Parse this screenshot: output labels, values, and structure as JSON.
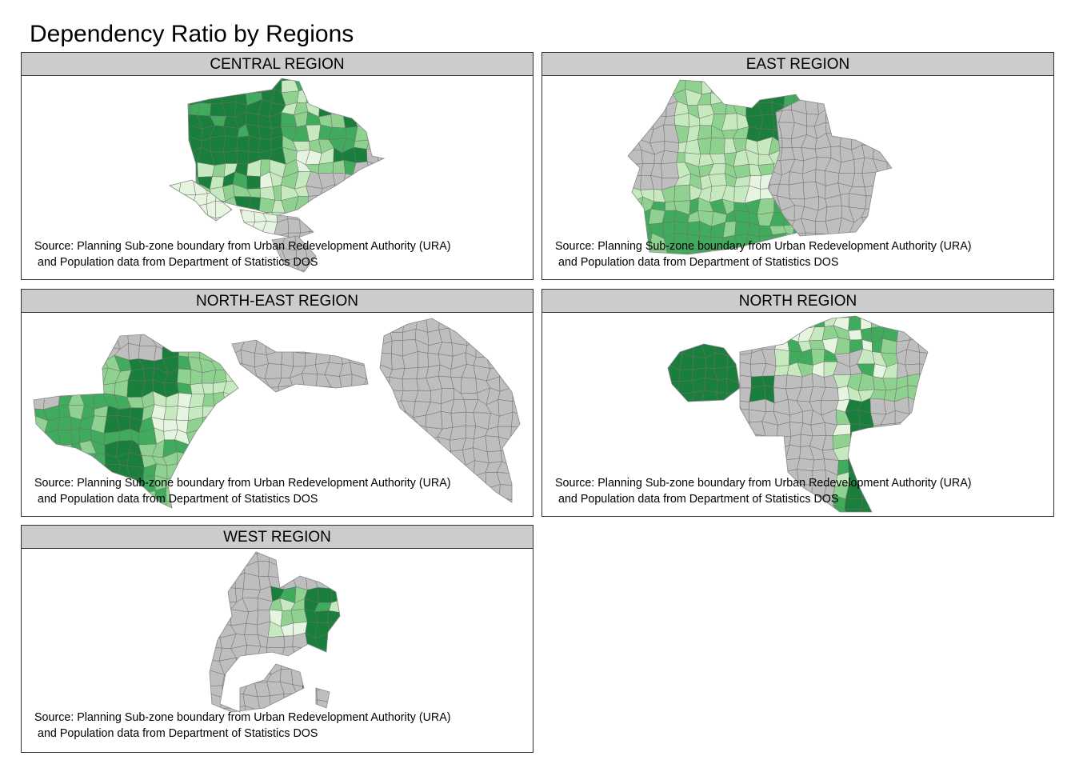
{
  "title": "Dependency Ratio by Regions",
  "caption": {
    "line1": "Source: Planning Sub-zone boundary from Urban Redevelopment Authority (URA)",
    "line2": "and Population data from Department of Statistics DOS"
  },
  "panels": [
    {
      "id": "central",
      "label": "CENTRAL REGION"
    },
    {
      "id": "east",
      "label": "EAST REGION"
    },
    {
      "id": "northeast",
      "label": "NORTH-EAST REGION"
    },
    {
      "id": "north",
      "label": "NORTH REGION"
    },
    {
      "id": "west",
      "label": "WEST REGION"
    }
  ],
  "colors": {
    "missing": "#bebebe",
    "classes": [
      "#e5f5e0",
      "#c7e9c0",
      "#8fd18f",
      "#41ab5d",
      "#1a7f3c"
    ],
    "border": "#6e6e6e"
  }
}
